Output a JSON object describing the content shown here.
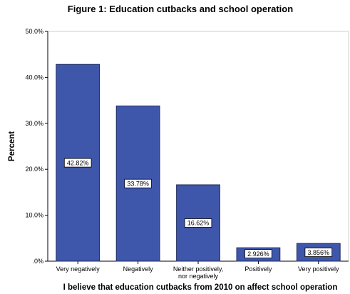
{
  "chart_data": {
    "type": "bar",
    "title": "Figure 1: Education cutbacks and school operation",
    "xlabel": "I believe that education cutbacks from 2010 on affect school operation",
    "ylabel": "Percent",
    "categories": [
      [
        "Very negatively"
      ],
      [
        "Negatively"
      ],
      [
        "Neither positively,",
        "nor negatively"
      ],
      [
        "Positively"
      ],
      [
        "Very positively"
      ]
    ],
    "values": [
      42.82,
      33.78,
      16.62,
      2.926,
      3.856
    ],
    "data_labels": [
      "42.82%",
      "33.78%",
      "16.62%",
      "2.926%",
      "3.856%"
    ],
    "yticks": [
      {
        "value": 0,
        "label": ".0%"
      },
      {
        "value": 10,
        "label": "10.0%"
      },
      {
        "value": 20,
        "label": "20.0%"
      },
      {
        "value": 30,
        "label": "30.0%"
      },
      {
        "value": 40,
        "label": "40.0%"
      },
      {
        "value": 50,
        "label": "50.0%"
      }
    ],
    "ylim": [
      0,
      50
    ],
    "grid": false,
    "colors": {
      "bar_fill": "#3f57ab",
      "bar_stroke": "#1f2a5c",
      "axis": "#000000"
    }
  }
}
